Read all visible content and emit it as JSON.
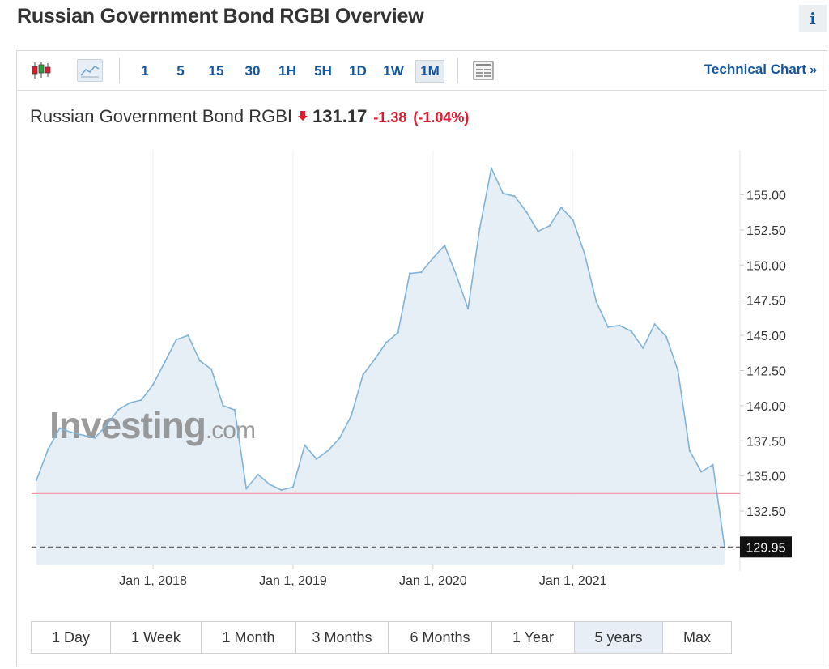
{
  "page": {
    "title": "Russian Government Bond RGBI Overview",
    "info_label": "i"
  },
  "toolbar": {
    "chart_type_icons": [
      "candlestick-icon",
      "area-chart-icon"
    ],
    "timeframes": [
      "1",
      "5",
      "15",
      "30",
      "1H",
      "5H",
      "1D",
      "1W",
      "1M"
    ],
    "active_timeframe": "1M",
    "settings_icon": "chart-settings-icon",
    "technical_link": "Technical Chart",
    "technical_arrow": "»"
  },
  "quote": {
    "name": "Russian Government Bond RGBI",
    "last": "131.17",
    "change": "-1.38",
    "change_pct": "(-1.04%)",
    "direction": "down",
    "colors": {
      "down": "#e1192d"
    }
  },
  "watermark": {
    "brand": "Investing",
    "suffix": ".com"
  },
  "chart_data": {
    "type": "area",
    "x": [
      "2017-03",
      "2017-04",
      "2017-05",
      "2017-06",
      "2017-07",
      "2017-08",
      "2017-09",
      "2017-10",
      "2017-11",
      "2017-12",
      "2018-01",
      "2018-02",
      "2018-03",
      "2018-04",
      "2018-05",
      "2018-06",
      "2018-07",
      "2018-08",
      "2018-09",
      "2018-10",
      "2018-11",
      "2018-12",
      "2019-01",
      "2019-02",
      "2019-03",
      "2019-04",
      "2019-05",
      "2019-06",
      "2019-07",
      "2019-08",
      "2019-09",
      "2019-10",
      "2019-11",
      "2019-12",
      "2020-01",
      "2020-02",
      "2020-03",
      "2020-04",
      "2020-05",
      "2020-06",
      "2020-07",
      "2020-08",
      "2020-09",
      "2020-10",
      "2020-11",
      "2020-12",
      "2021-01",
      "2021-02",
      "2021-03",
      "2021-04",
      "2021-05",
      "2021-06",
      "2021-07",
      "2021-08",
      "2021-09",
      "2021-10",
      "2021-11",
      "2021-12",
      "2022-01",
      "2022-02"
    ],
    "values": [
      134.7,
      136.9,
      138.4,
      138.1,
      137.9,
      137.7,
      138.6,
      139.7,
      140.2,
      140.4,
      141.5,
      143.1,
      144.7,
      145.0,
      143.2,
      142.6,
      140.0,
      139.7,
      134.1,
      135.1,
      134.4,
      134.0,
      134.2,
      137.2,
      136.2,
      136.8,
      137.7,
      139.3,
      142.2,
      143.3,
      144.5,
      145.2,
      149.4,
      149.5,
      150.5,
      151.4,
      149.3,
      146.9,
      152.6,
      156.9,
      155.1,
      154.9,
      153.8,
      152.4,
      152.8,
      154.1,
      153.2,
      150.8,
      147.4,
      145.6,
      145.7,
      145.3,
      144.1,
      145.8,
      144.9,
      142.5,
      136.8,
      135.3,
      135.8,
      129.95
    ],
    "x_tick_labels": [
      "Jan 1, 2018",
      "Jan 1, 2019",
      "Jan 1, 2020",
      "Jan 1, 2021"
    ],
    "x_tick_dates": [
      "2018-01",
      "2019-01",
      "2020-01",
      "2021-01"
    ],
    "y_ticks": [
      132.5,
      135.0,
      137.5,
      140.0,
      142.5,
      145.0,
      147.5,
      150.0,
      152.5,
      155.0
    ],
    "ylim": [
      128.7,
      158.2
    ],
    "last_value_label": "129.95",
    "prev_close": 133.75,
    "grid": true,
    "colors": {
      "line": "#7fb3d8",
      "fill": "#e3ecf5",
      "prev_close_line": "#f19aa4",
      "last_line": "#555555",
      "last_box": "#111111"
    }
  },
  "range_buttons": [
    "1 Day",
    "1 Week",
    "1 Month",
    "3 Months",
    "6 Months",
    "1 Year",
    "5 years",
    "Max"
  ],
  "active_range": "5 years"
}
